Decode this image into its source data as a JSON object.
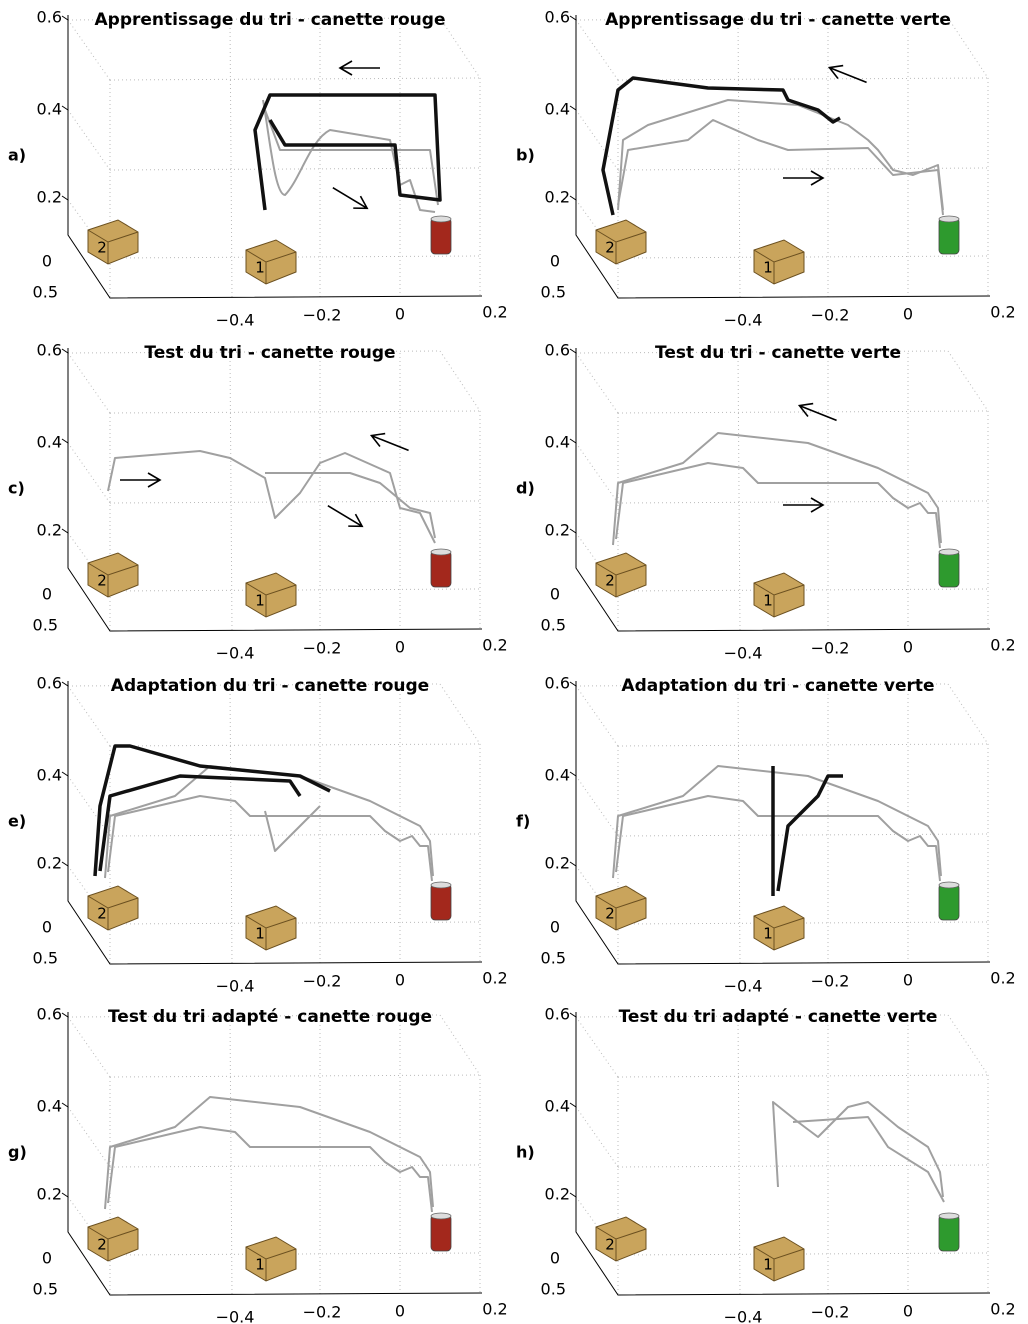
{
  "panels": [
    {
      "letter": "a)",
      "title": "Apprentissage du tri - canette rouge",
      "zticks": [
        "0.6",
        "0.4",
        "0.2"
      ],
      "yticks": [
        "0",
        "0.5"
      ],
      "xticks": [
        "−0.4",
        "−0.2",
        "0",
        "0.2"
      ],
      "boxes": [
        "2",
        "1"
      ]
    },
    {
      "letter": "b)",
      "title": "Apprentissage du tri - canette verte",
      "zticks": [
        "0.6",
        "0.4",
        "0.2"
      ],
      "yticks": [
        "0",
        "0.5"
      ],
      "xticks": [
        "−0.4",
        "−0.2",
        "0",
        "0.2"
      ],
      "boxes": [
        "2",
        "1"
      ]
    },
    {
      "letter": "c)",
      "title": "Test du tri - canette rouge",
      "zticks": [
        "0.6",
        "0.4",
        "0.2"
      ],
      "yticks": [
        "0",
        "0.5"
      ],
      "xticks": [
        "−0.4",
        "−0.2",
        "0",
        "0.2"
      ],
      "boxes": [
        "2",
        "1"
      ]
    },
    {
      "letter": "d)",
      "title": "Test du tri - canette verte",
      "zticks": [
        "0.6",
        "0.4",
        "0.2"
      ],
      "yticks": [
        "0",
        "0.5"
      ],
      "xticks": [
        "−0.4",
        "−0.2",
        "0",
        "0.2"
      ],
      "boxes": [
        "2",
        "1"
      ]
    },
    {
      "letter": "e)",
      "title": "Adaptation du tri - canette rouge",
      "zticks": [
        "0.6",
        "0.4",
        "0.2"
      ],
      "yticks": [
        "0",
        "0.5"
      ],
      "xticks": [
        "−0.4",
        "−0.2",
        "0",
        "0.2"
      ],
      "boxes": [
        "2",
        "1"
      ]
    },
    {
      "letter": "f)",
      "title": "Adaptation du tri - canette verte",
      "zticks": [
        "0.6",
        "0.4",
        "0.2"
      ],
      "yticks": [
        "0",
        "0.5"
      ],
      "xticks": [
        "−0.4",
        "−0.2",
        "0",
        "0.2"
      ],
      "boxes": [
        "2",
        "1"
      ]
    },
    {
      "letter": "g)",
      "title": "Test du tri adapté - canette rouge",
      "zticks": [
        "0.6",
        "0.4",
        "0.2"
      ],
      "yticks": [
        "0",
        "0.5"
      ],
      "xticks": [
        "−0.4",
        "−0.2",
        "0",
        "0.2"
      ],
      "boxes": [
        "2",
        "1"
      ]
    },
    {
      "letter": "h)",
      "title": "Test du tri adapté - canette verte",
      "zticks": [
        "0.6",
        "0.4",
        "0.2"
      ],
      "yticks": [
        "0",
        "0.5"
      ],
      "xticks": [
        "−0.4",
        "−0.2",
        "0",
        "0.2"
      ],
      "boxes": [
        "2",
        "1"
      ]
    }
  ]
}
